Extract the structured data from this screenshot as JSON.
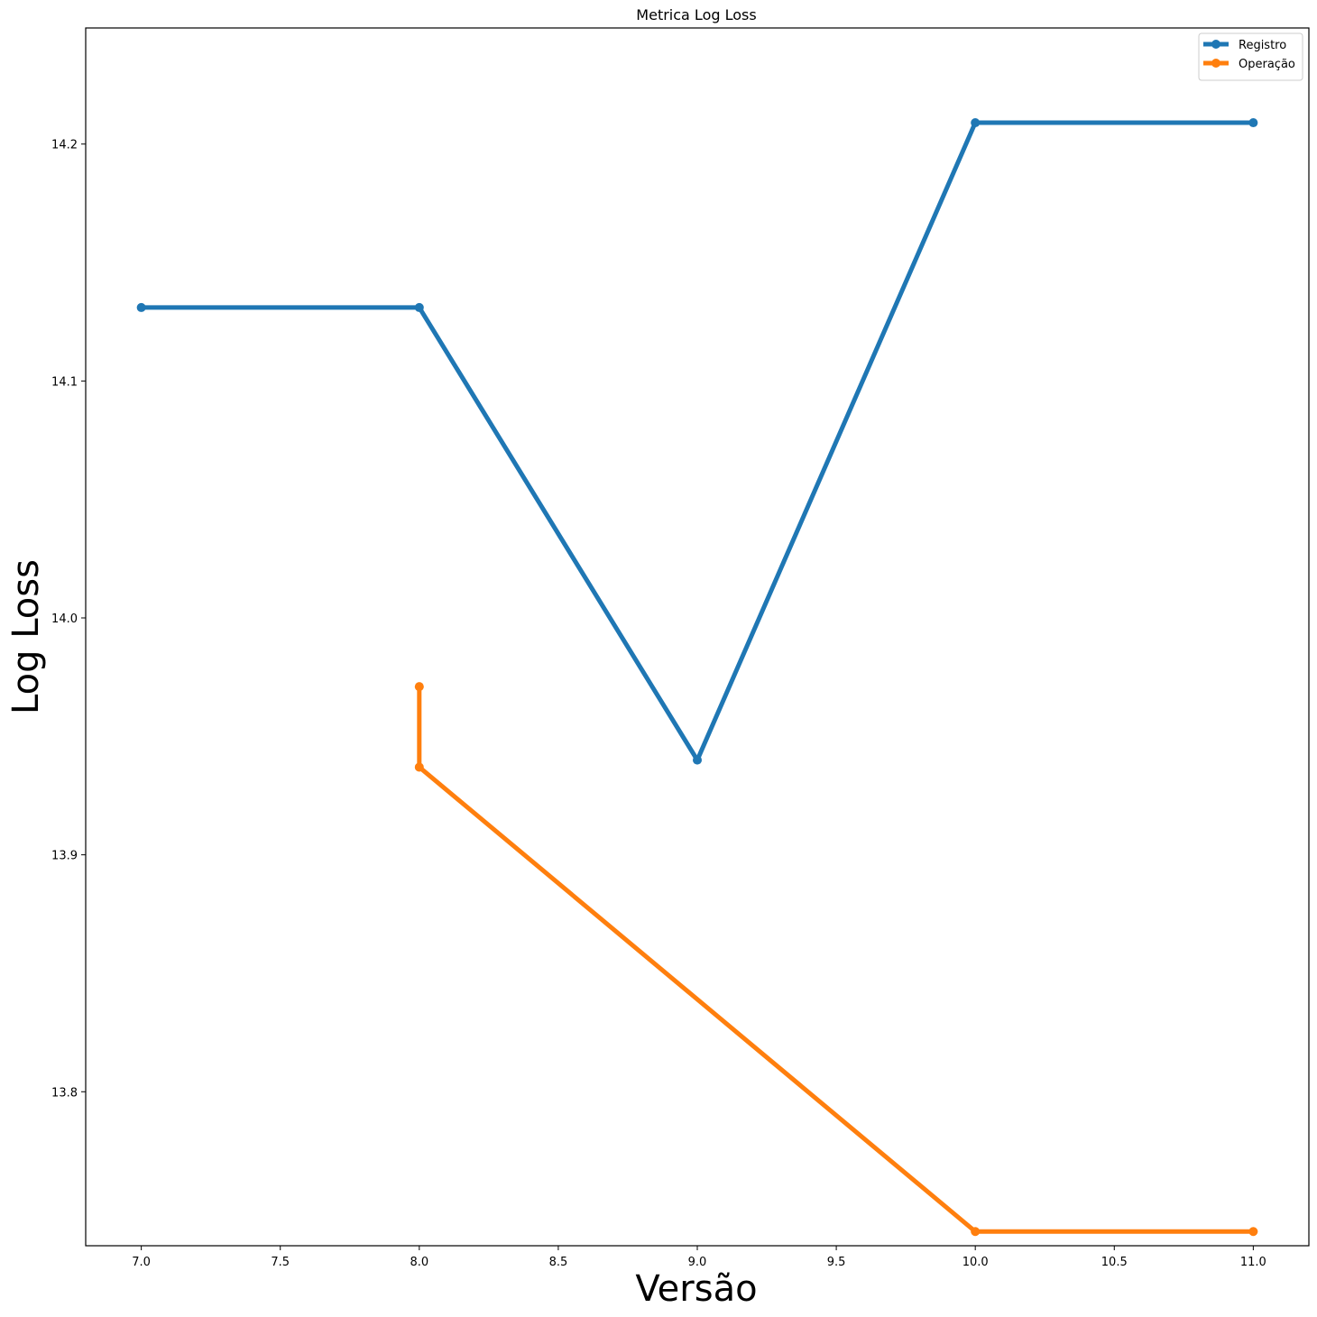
{
  "chart_data": {
    "type": "line",
    "title": "Metrica Log Loss",
    "xlabel": "Versão",
    "ylabel": "Log Loss",
    "xlim": [
      6.8,
      11.2
    ],
    "ylim": [
      13.735,
      14.249
    ],
    "xticks": [
      7.0,
      7.5,
      8.0,
      8.5,
      9.0,
      9.5,
      10.0,
      10.5,
      11.0
    ],
    "xtick_labels": [
      "7.0",
      "7.5",
      "8.0",
      "8.5",
      "9.0",
      "9.5",
      "10.0",
      "10.5",
      "11.0"
    ],
    "yticks": [
      13.8,
      13.9,
      14.0,
      14.1,
      14.2
    ],
    "ytick_labels": [
      "13.8",
      "13.9",
      "14.0",
      "14.1",
      "14.2"
    ],
    "grid": false,
    "legend_position": "top-right",
    "series": [
      {
        "name": "Registro",
        "color": "#1f77b4",
        "x": [
          7,
          8,
          9,
          10,
          11
        ],
        "y": [
          14.131,
          14.131,
          13.94,
          14.209,
          14.209
        ]
      },
      {
        "name": "Operação",
        "color": "#ff7f0e",
        "x": [
          8,
          8,
          10,
          11
        ],
        "y": [
          13.971,
          13.937,
          13.741,
          13.741
        ]
      }
    ]
  }
}
